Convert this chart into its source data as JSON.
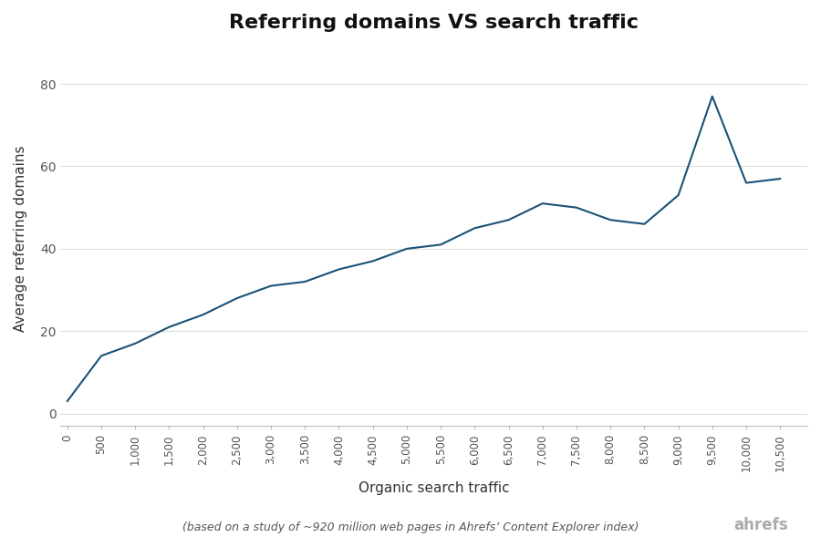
{
  "title": "Referring domains VS search traffic",
  "xlabel": "Organic search traffic",
  "ylabel": "Average referring domains",
  "footnote": "(based on a study of ~920 million web pages in Ahrefs’ Content Explorer index)",
  "branding": "ahrefs",
  "line_color": "#1a5276",
  "background_color": "#ffffff",
  "x_values": [
    0,
    500,
    1000,
    1500,
    2000,
    2500,
    3000,
    3500,
    4000,
    4500,
    5000,
    5500,
    6000,
    6500,
    7000,
    7500,
    8000,
    8500,
    9000,
    9500,
    10000,
    10500
  ],
  "y_values": [
    3,
    14,
    17,
    21,
    24,
    28,
    31,
    32,
    35,
    37,
    40,
    41,
    45,
    47,
    51,
    50,
    47,
    46,
    53,
    77,
    56,
    57
  ],
  "x_tick_positions": [
    0,
    500,
    1000,
    1500,
    2000,
    2500,
    3000,
    3500,
    4000,
    4500,
    5000,
    5500,
    6000,
    6500,
    7000,
    7500,
    8000,
    8500,
    9000,
    9500,
    10000,
    10500
  ],
  "x_tick_labels": [
    "0",
    "500",
    "1,000",
    "1,500",
    "2,000",
    "2,500",
    "3,000",
    "3,500",
    "4,000",
    "4,500",
    "5,000",
    "5,500",
    "6,000",
    "6,500",
    "7,000",
    "7,500",
    "8,000",
    "8,500",
    "9,000",
    "9,500",
    "10,000",
    "10,500"
  ],
  "y_ticks": [
    0,
    20,
    40,
    60,
    80
  ],
  "xlim": [
    -100,
    10900
  ],
  "ylim": [
    -3,
    88
  ]
}
